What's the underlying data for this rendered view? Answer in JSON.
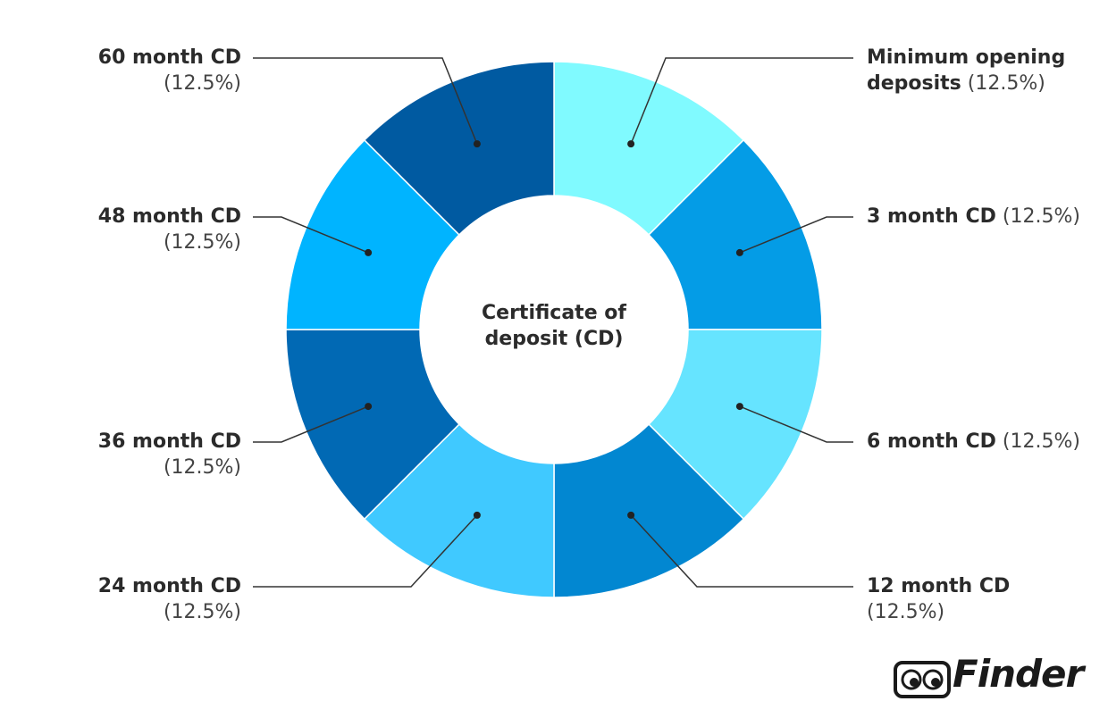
{
  "chart_data": {
    "type": "pie",
    "center_label": "Certificate of deposit (CD)",
    "categories": [
      "Minimum opening deposits",
      "3 month CD",
      "6 month CD",
      "12 month CD",
      "24 month CD",
      "36 month CD",
      "48 month CD",
      "60 month CD"
    ],
    "values": [
      12.5,
      12.5,
      12.5,
      12.5,
      12.5,
      12.5,
      12.5,
      12.5
    ],
    "value_labels": [
      "(12.5%)",
      "(12.5%)",
      "(12.5%)",
      "(12.5%)",
      "(12.5%)",
      "(12.5%)",
      "(12.5%)",
      "(12.5%)"
    ],
    "colors": [
      "#80faff",
      "#049ce6",
      "#66e4ff",
      "#0287d1",
      "#40c9ff",
      "#0169b4",
      "#00b4ff",
      "#005aa1"
    ]
  },
  "brand": "Finder"
}
